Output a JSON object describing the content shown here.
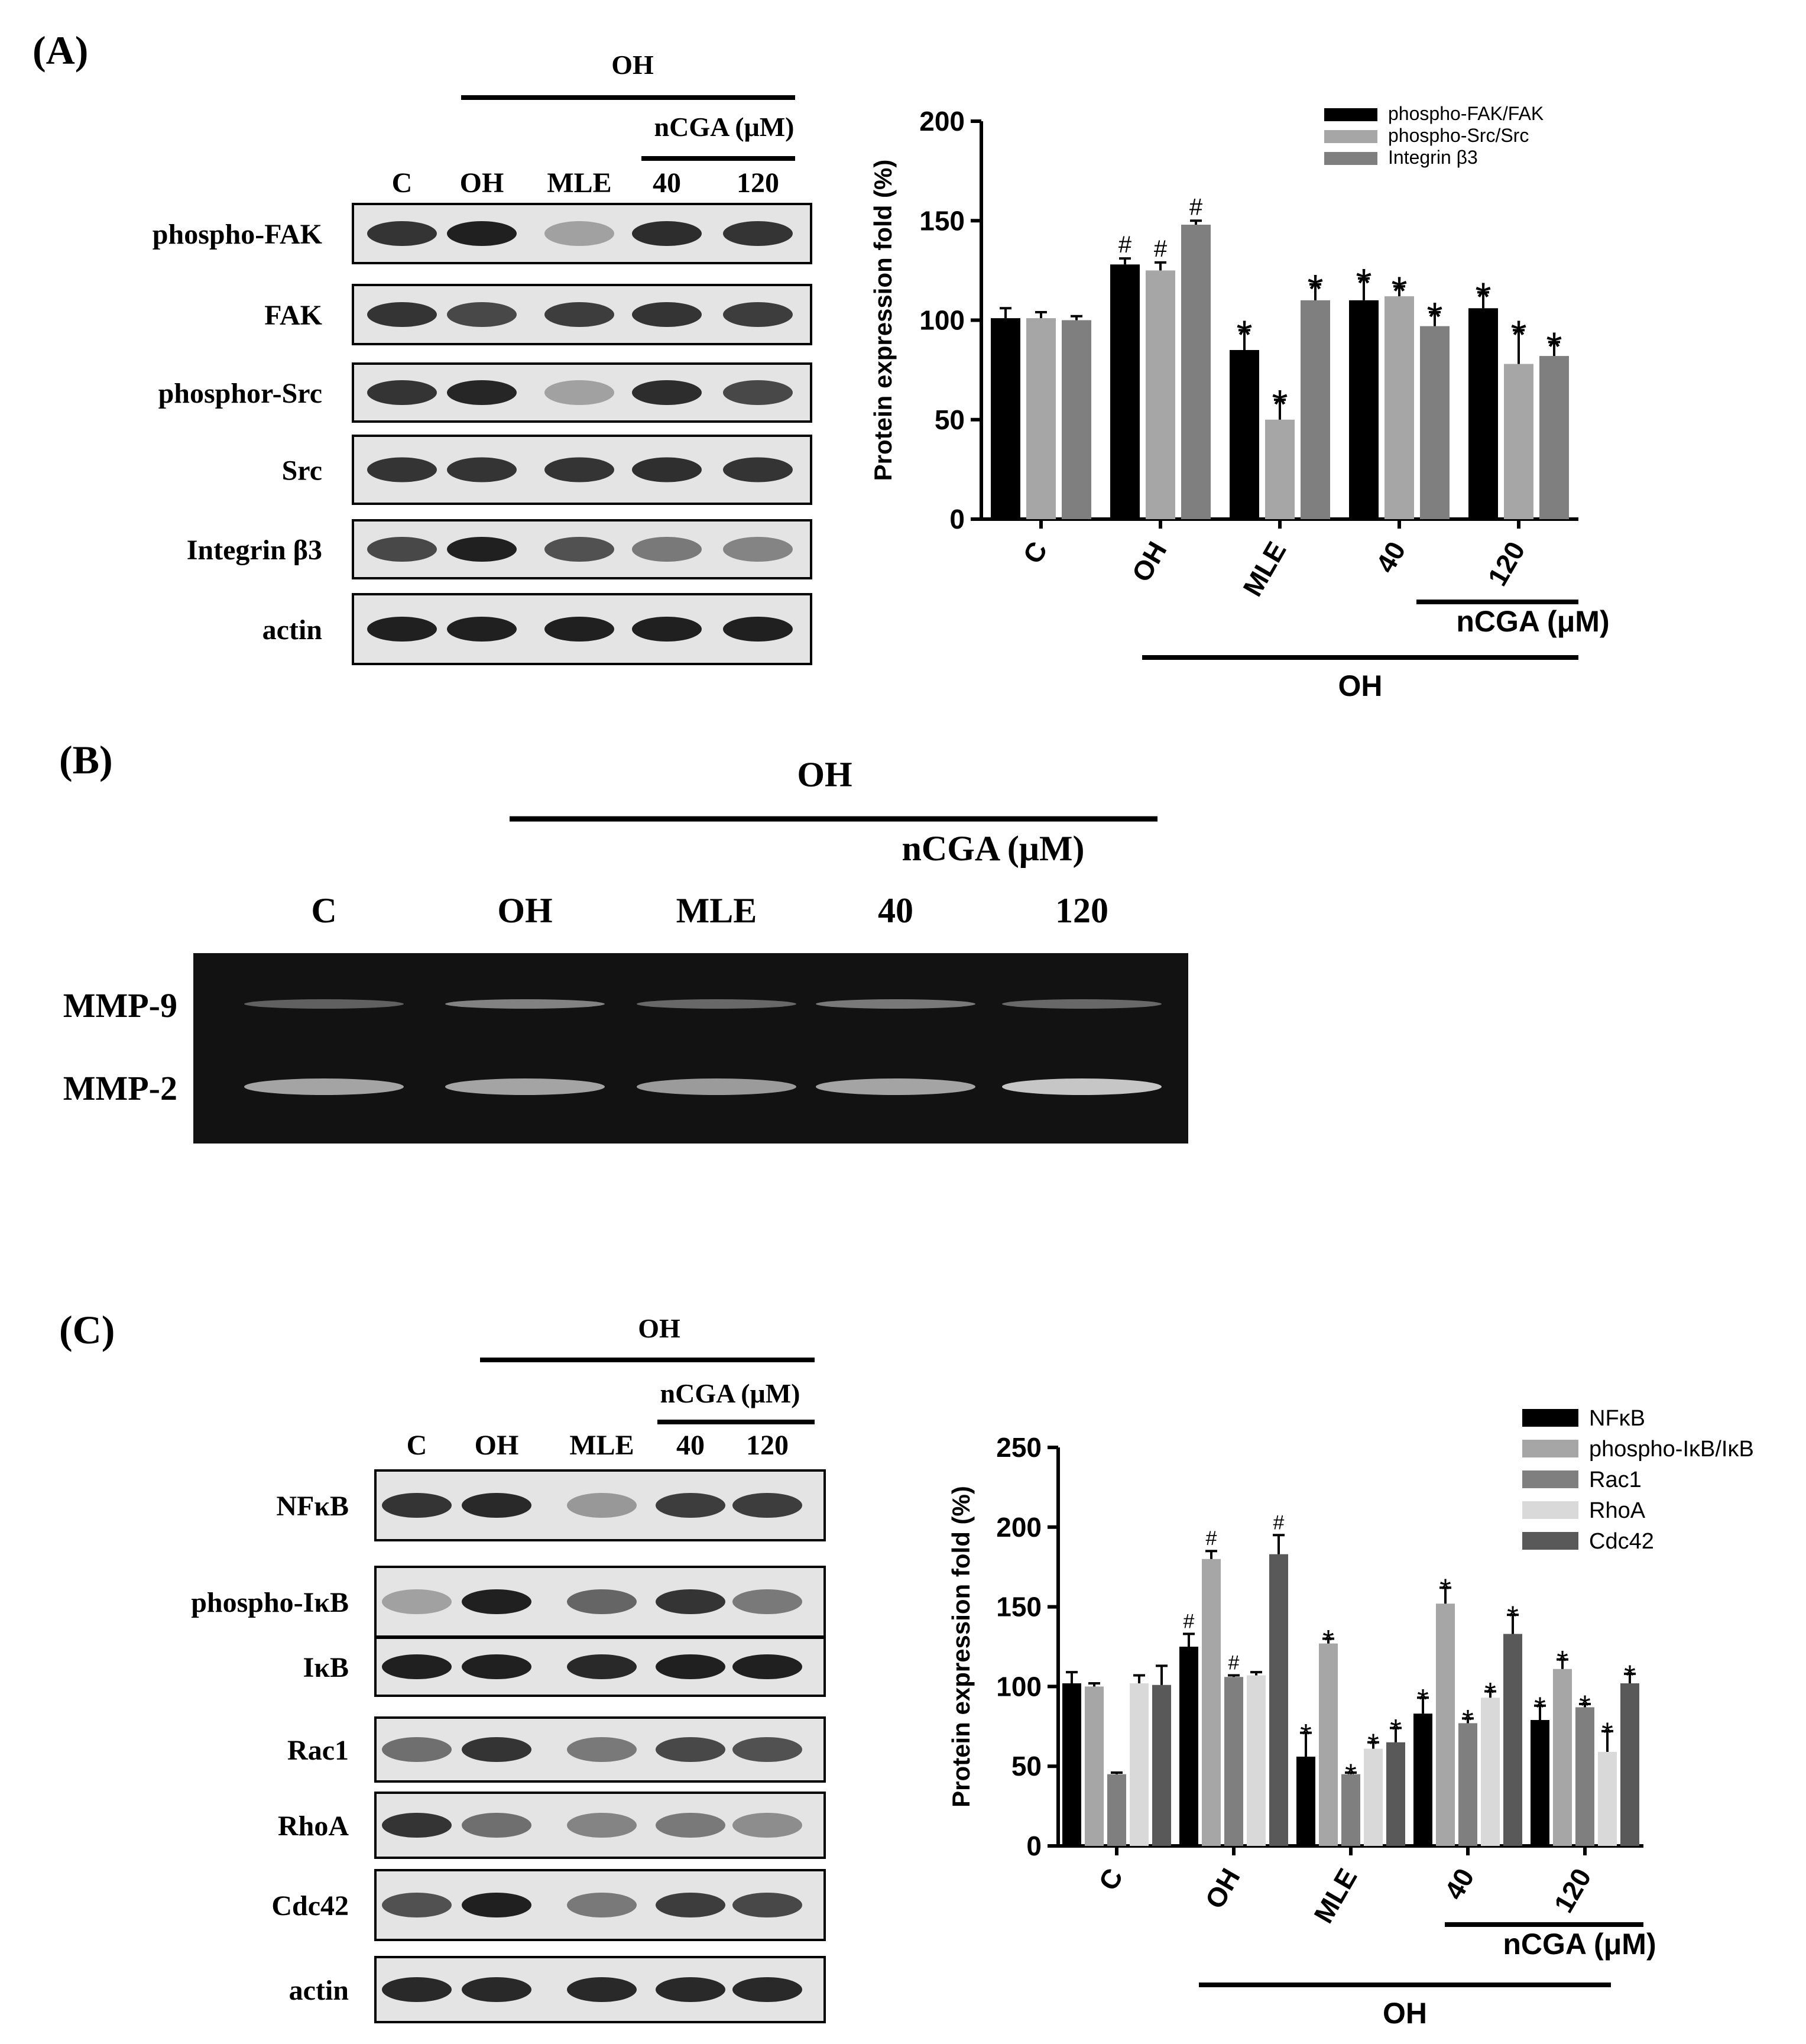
{
  "panels": {
    "a": {
      "label": "(A)",
      "blot": {
        "treatment_top": "OH",
        "ncga_label": "nCGA (μM)",
        "lanes": [
          "C",
          "OH",
          "MLE",
          "40",
          "120"
        ],
        "rows": [
          {
            "label": "phospho-FAK",
            "intensity": [
              0.85,
              0.95,
              0.3,
              0.88,
              0.85
            ]
          },
          {
            "label": "FAK",
            "intensity": [
              0.85,
              0.75,
              0.8,
              0.85,
              0.8
            ]
          },
          {
            "label": "phosphor-Src",
            "intensity": [
              0.85,
              0.92,
              0.3,
              0.88,
              0.75
            ]
          },
          {
            "label": "Src",
            "intensity": [
              0.85,
              0.85,
              0.85,
              0.87,
              0.85
            ]
          },
          {
            "label": "Integrin β3",
            "intensity": [
              0.75,
              0.95,
              0.7,
              0.5,
              0.45
            ]
          },
          {
            "label": "actin",
            "intensity": [
              0.95,
              0.95,
              0.95,
              0.95,
              0.95
            ]
          }
        ]
      }
    },
    "b": {
      "label": "(B)",
      "treatment_top": "OH",
      "ncga_label": "nCGA (μM)",
      "lanes": [
        "C",
        "OH",
        "MLE",
        "40",
        "120"
      ],
      "rows": [
        {
          "label": "MMP-9",
          "intensity": [
            0.35,
            0.55,
            0.4,
            0.5,
            0.4
          ]
        },
        {
          "label": "MMP-2",
          "intensity": [
            0.75,
            0.75,
            0.7,
            0.75,
            0.95
          ]
        }
      ]
    },
    "c": {
      "label": "(C)",
      "blot": {
        "treatment_top": "OH",
        "ncga_label": "nCGA (μM)",
        "lanes": [
          "C",
          "OH",
          "MLE",
          "40",
          "120"
        ],
        "rows": [
          {
            "label": "NFκB",
            "intensity": [
              0.85,
              0.9,
              0.35,
              0.8,
              0.8
            ]
          },
          {
            "label": "phospho-IκB",
            "intensity": [
              0.3,
              0.95,
              0.6,
              0.85,
              0.5
            ]
          },
          {
            "label": "IκB",
            "intensity": [
              0.95,
              0.95,
              0.9,
              0.95,
              0.95
            ]
          },
          {
            "label": "Rac1",
            "intensity": [
              0.55,
              0.85,
              0.5,
              0.75,
              0.7
            ]
          },
          {
            "label": "RhoA",
            "intensity": [
              0.85,
              0.55,
              0.45,
              0.5,
              0.4
            ]
          },
          {
            "label": "Cdc42",
            "intensity": [
              0.7,
              0.95,
              0.5,
              0.8,
              0.75
            ]
          },
          {
            "label": "actin",
            "intensity": [
              0.9,
              0.9,
              0.9,
              0.9,
              0.9
            ]
          }
        ]
      }
    }
  },
  "chart_data": [
    {
      "type": "bar",
      "panel": "A",
      "ylabel": "Protein expression  fold (%)",
      "ylim": [
        0,
        200
      ],
      "yticks": [
        0,
        50,
        100,
        150,
        200
      ],
      "categories": [
        "C",
        "OH",
        "MLE",
        "40",
        "120"
      ],
      "group_labels": [
        {
          "text": "nCGA (μM)",
          "span": [
            "40",
            "120"
          ]
        },
        {
          "text": "OH",
          "span": [
            "OH",
            "120"
          ]
        }
      ],
      "legend_position": "top-right",
      "series": [
        {
          "name": "phospho-FAK/FAK",
          "color": "#000000",
          "values": [
            101,
            128,
            85,
            110,
            106
          ],
          "errors": [
            5,
            3,
            10,
            11,
            8
          ],
          "marks": [
            "",
            "#",
            "*",
            "*",
            "*"
          ]
        },
        {
          "name": "phospho-Src/Src",
          "color": "#a6a6a6",
          "values": [
            101,
            125,
            50,
            112,
            78
          ],
          "errors": [
            3,
            4,
            10,
            5,
            17
          ],
          "marks": [
            "",
            "#",
            "*",
            "*",
            "*"
          ]
        },
        {
          "name": "Integrin β3",
          "color": "#7f7f7f",
          "values": [
            100,
            148,
            110,
            97,
            82
          ],
          "errors": [
            2,
            2,
            8,
            7,
            7
          ],
          "marks": [
            "",
            "#",
            "*",
            "*",
            "*"
          ]
        }
      ]
    },
    {
      "type": "bar",
      "panel": "C",
      "ylabel": "Protein expression  fold (%)",
      "ylim": [
        0,
        250
      ],
      "yticks": [
        0,
        50,
        100,
        150,
        200,
        250
      ],
      "categories": [
        "C",
        "OH",
        "MLE",
        "40",
        "120"
      ],
      "group_labels": [
        {
          "text": "nCGA (μM)",
          "span": [
            "40",
            "120"
          ]
        },
        {
          "text": "OH",
          "span": [
            "OH",
            "120"
          ]
        }
      ],
      "legend_position": "top-right",
      "series": [
        {
          "name": "NFκB",
          "color": "#000000",
          "values": [
            102,
            125,
            56,
            83,
            79
          ],
          "errors": [
            7,
            8,
            15,
            10,
            9
          ],
          "marks": [
            "",
            "#",
            "*",
            "*",
            "*"
          ]
        },
        {
          "name": "phospho-IκB/IκB",
          "color": "#a6a6a6",
          "values": [
            100,
            180,
            127,
            152,
            111
          ],
          "errors": [
            2,
            5,
            3,
            10,
            6
          ],
          "marks": [
            "",
            "#",
            "*",
            "*",
            "*"
          ]
        },
        {
          "name": "Rac1",
          "color": "#7f7f7f",
          "values": [
            45,
            106,
            45,
            77,
            87
          ],
          "errors": [
            1,
            1,
            1,
            3,
            2
          ],
          "marks": [
            "",
            "#",
            "*",
            "*",
            "*"
          ]
        },
        {
          "name": "RhoA",
          "color": "#d9d9d9",
          "values": [
            102,
            107,
            61,
            93,
            59
          ],
          "errors": [
            5,
            2,
            4,
            4,
            13
          ],
          "marks": [
            "",
            "",
            "*",
            "*",
            "*"
          ]
        },
        {
          "name": "Cdc42",
          "color": "#595959",
          "values": [
            101,
            183,
            65,
            133,
            102
          ],
          "errors": [
            12,
            12,
            9,
            12,
            6
          ],
          "marks": [
            "",
            "#",
            "*",
            "*",
            "*"
          ]
        }
      ]
    }
  ]
}
